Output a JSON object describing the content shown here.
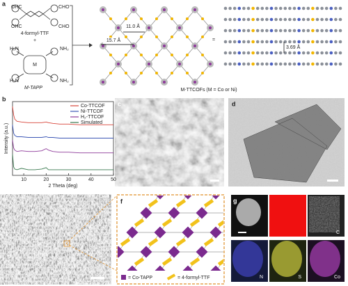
{
  "panel_labels": [
    "a",
    "b",
    "c",
    "d",
    "e",
    "f",
    "g"
  ],
  "panel_a": {
    "ttf_label": "4-formyl-TTF",
    "plus": "+",
    "tapp_label": "M-TAPP",
    "ttf_groups": [
      "OHC",
      "CHO",
      "OHC",
      "CHO"
    ],
    "tapp_groups": [
      "H₂N",
      "NH₂",
      "H₂N",
      "NH₂"
    ],
    "metal": "M",
    "distance_1": "11.0 Å",
    "distance_2": "15.7 Å",
    "equals": "=",
    "cof_label": "M-TTCOFs (M = Co or Ni)",
    "stack_distance": "3.69 Å"
  },
  "chart_data": {
    "type": "line",
    "x_label": "2 Theta (deg)",
    "y_label": "Intensity (a.u.)",
    "x": [
      5,
      5.5,
      6,
      7,
      9,
      12,
      15,
      18,
      20,
      21,
      23,
      26,
      30,
      35,
      40,
      45,
      50
    ],
    "series": [
      {
        "name": "Co-TTCOF",
        "color": "#d9453a",
        "values": [
          9.8,
          8.6,
          8.0,
          7.7,
          7.6,
          7.5,
          7.5,
          7.5,
          7.6,
          7.5,
          7.4,
          7.3,
          7.3,
          7.2,
          7.2,
          7.2,
          7.2
        ]
      },
      {
        "name": "Ni-TTCOF",
        "color": "#3a55b5",
        "values": [
          7.2,
          6.0,
          5.7,
          5.5,
          5.5,
          5.4,
          5.4,
          5.4,
          5.5,
          5.4,
          5.4,
          5.3,
          5.3,
          5.3,
          5.3,
          5.3,
          5.3
        ]
      },
      {
        "name": "H₂-TTCOF",
        "color": "#8e3a9a",
        "values": [
          5.0,
          3.9,
          3.6,
          3.4,
          3.5,
          3.4,
          3.4,
          3.5,
          3.8,
          3.6,
          3.4,
          3.3,
          3.3,
          3.2,
          3.2,
          3.2,
          3.2
        ]
      },
      {
        "name": "Simulated",
        "color": "#3a7a4f",
        "values": [
          3.0,
          1.2,
          0.9,
          0.8,
          1.0,
          0.8,
          0.8,
          0.9,
          1.1,
          0.8,
          0.8,
          0.8,
          0.8,
          0.8,
          0.8,
          0.8,
          0.8
        ]
      }
    ],
    "xlim": [
      5,
      50
    ],
    "ylim": [
      0,
      10.5
    ],
    "xticks": [
      10,
      20,
      30,
      40,
      50
    ],
    "legend": "upper right"
  },
  "panel_f": {
    "legend": [
      "= Co-TAPP",
      "= 4-formyl-TTF"
    ]
  },
  "panel_g": {
    "elements": [
      "C",
      "N",
      "S",
      "Co"
    ]
  }
}
